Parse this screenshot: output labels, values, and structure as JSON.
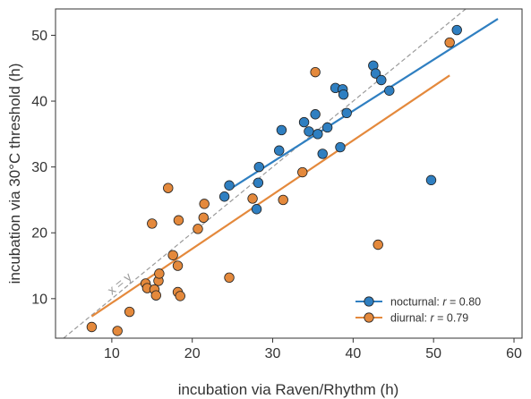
{
  "chart_data": {
    "type": "scatter",
    "xlabel": "incubation via Raven/Rhythm (h)",
    "ylabel": "incubation via 30°C threshold (h)",
    "xlim": [
      3,
      61
    ],
    "ylim": [
      4,
      54
    ],
    "xticks": [
      10,
      20,
      30,
      40,
      50,
      60
    ],
    "yticks": [
      10,
      20,
      30,
      40,
      50
    ],
    "grid": false,
    "legend_position": "bottom-right",
    "reference_line": {
      "label": "x = y",
      "color": "#9a9a9a",
      "style": "dashed"
    },
    "series": [
      {
        "name": "nocturnal",
        "legend_prefix": "nocturnal: ",
        "legend_r": "r",
        "legend_value": " = 0.80",
        "color": "#2f7fc1",
        "fit": {
          "x": [
            24.5,
            58
          ],
          "y": [
            26.5,
            52.5
          ]
        },
        "points": [
          {
            "x": 24.0,
            "y": 25.5
          },
          {
            "x": 24.6,
            "y": 27.2
          },
          {
            "x": 28.0,
            "y": 23.6
          },
          {
            "x": 28.2,
            "y": 27.6
          },
          {
            "x": 28.3,
            "y": 30.0
          },
          {
            "x": 30.8,
            "y": 32.5
          },
          {
            "x": 31.1,
            "y": 35.6
          },
          {
            "x": 33.9,
            "y": 36.8
          },
          {
            "x": 34.5,
            "y": 35.4
          },
          {
            "x": 35.3,
            "y": 38.0
          },
          {
            "x": 35.6,
            "y": 35.0
          },
          {
            "x": 36.2,
            "y": 32.0
          },
          {
            "x": 36.8,
            "y": 36.0
          },
          {
            "x": 37.8,
            "y": 42.0
          },
          {
            "x": 38.4,
            "y": 33.0
          },
          {
            "x": 38.7,
            "y": 41.8
          },
          {
            "x": 38.8,
            "y": 41.0
          },
          {
            "x": 39.2,
            "y": 38.2
          },
          {
            "x": 42.5,
            "y": 45.4
          },
          {
            "x": 42.8,
            "y": 44.2
          },
          {
            "x": 43.5,
            "y": 43.2
          },
          {
            "x": 44.5,
            "y": 41.6
          },
          {
            "x": 49.7,
            "y": 28.0
          },
          {
            "x": 52.9,
            "y": 50.8
          }
        ]
      },
      {
        "name": "diurnal",
        "legend_prefix": "diurnal: ",
        "legend_r": "r",
        "legend_value": " = 0.79",
        "color": "#e4893c",
        "fit": {
          "x": [
            7.5,
            52
          ],
          "y": [
            7.3,
            43.9
          ]
        },
        "points": [
          {
            "x": 7.5,
            "y": 5.7
          },
          {
            "x": 10.7,
            "y": 5.1
          },
          {
            "x": 12.2,
            "y": 8.0
          },
          {
            "x": 14.2,
            "y": 12.3
          },
          {
            "x": 14.4,
            "y": 11.6
          },
          {
            "x": 15.0,
            "y": 21.4
          },
          {
            "x": 15.3,
            "y": 11.4
          },
          {
            "x": 15.5,
            "y": 10.5
          },
          {
            "x": 15.8,
            "y": 12.7
          },
          {
            "x": 15.9,
            "y": 13.8
          },
          {
            "x": 17.0,
            "y": 26.8
          },
          {
            "x": 17.6,
            "y": 16.6
          },
          {
            "x": 18.2,
            "y": 11.0
          },
          {
            "x": 18.2,
            "y": 15.0
          },
          {
            "x": 18.3,
            "y": 21.9
          },
          {
            "x": 18.5,
            "y": 10.4
          },
          {
            "x": 20.7,
            "y": 20.6
          },
          {
            "x": 21.4,
            "y": 22.3
          },
          {
            "x": 21.5,
            "y": 24.4
          },
          {
            "x": 24.6,
            "y": 13.2
          },
          {
            "x": 27.5,
            "y": 25.2
          },
          {
            "x": 31.3,
            "y": 25.0
          },
          {
            "x": 33.7,
            "y": 29.2
          },
          {
            "x": 35.3,
            "y": 44.4
          },
          {
            "x": 43.1,
            "y": 18.2
          },
          {
            "x": 52.0,
            "y": 48.9
          }
        ]
      }
    ]
  }
}
